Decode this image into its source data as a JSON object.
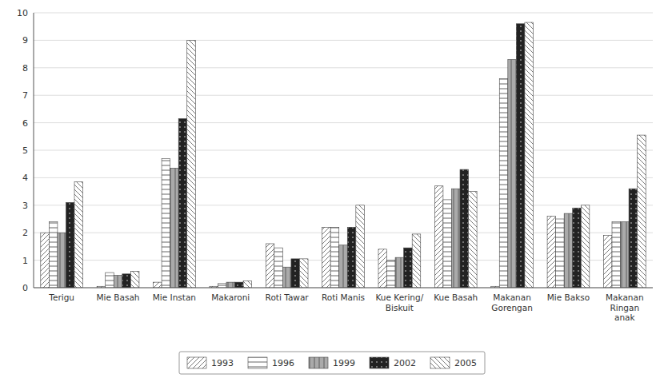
{
  "chart_data": {
    "type": "bar",
    "categories": [
      "Terigu",
      "Mie Basah",
      "Mie Instan",
      "Makaroni",
      "Roti Tawar",
      "Roti Manis",
      "Kue Kering/\nBiskuit",
      "Kue Basah",
      "Makanan\nGorengan",
      "Mie Bakso",
      "Makanan\nRingan\nanak"
    ],
    "series": [
      {
        "name": "1993",
        "color": "#ffffff",
        "values": [
          2.0,
          0.05,
          0.2,
          0.05,
          1.6,
          2.2,
          1.4,
          3.7,
          0.05,
          2.6,
          1.9
        ]
      },
      {
        "name": "1996",
        "color": "#ffffff",
        "values": [
          2.4,
          0.55,
          4.7,
          0.15,
          1.45,
          2.2,
          1.0,
          3.2,
          7.6,
          2.5,
          2.4
        ]
      },
      {
        "name": "1999",
        "color": "#aaaaaa",
        "values": [
          2.0,
          0.45,
          4.35,
          0.2,
          0.75,
          1.55,
          1.1,
          3.6,
          8.3,
          2.7,
          2.4
        ]
      },
      {
        "name": "2002",
        "color": "#222222",
        "values": [
          3.1,
          0.5,
          6.15,
          0.2,
          1.05,
          2.2,
          1.45,
          4.3,
          9.6,
          2.9,
          3.6
        ]
      },
      {
        "name": "2005",
        "color": "#ffffff",
        "values": [
          3.85,
          0.6,
          9.0,
          0.25,
          1.05,
          3.0,
          1.95,
          3.5,
          9.65,
          3.0,
          5.55
        ]
      }
    ],
    "ylim": [
      0,
      10
    ],
    "yticks": [
      0,
      1,
      2,
      3,
      4,
      5,
      6,
      7,
      8,
      9,
      10
    ],
    "grid": true,
    "legend": "bottom"
  }
}
